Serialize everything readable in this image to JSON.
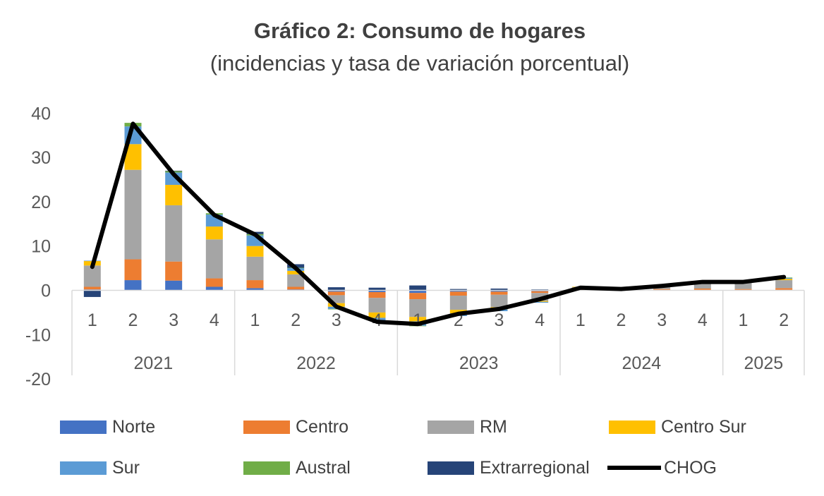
{
  "chart_data": {
    "type": "bar",
    "stacked": true,
    "title": "Gráfico 2: Consumo de hogares",
    "subtitle": "(incidencias y tasa de variación porcentual)",
    "categories": [
      "1",
      "2",
      "3",
      "4",
      "1",
      "2",
      "3",
      "4",
      "1",
      "2",
      "3",
      "4",
      "1",
      "2",
      "3",
      "4",
      "1",
      "2"
    ],
    "groups": [
      {
        "label": "2021",
        "count": 4
      },
      {
        "label": "2022",
        "count": 4
      },
      {
        "label": "2023",
        "count": 4
      },
      {
        "label": "2024",
        "count": 4
      },
      {
        "label": "2025",
        "count": 2
      }
    ],
    "ylim": [
      -20,
      40
    ],
    "yticks": [
      "-20",
      "-10",
      "0",
      "10",
      "20",
      "30",
      "40"
    ],
    "series": [
      {
        "name": "Norte",
        "color": "#4472C4",
        "values": [
          0.2,
          2.3,
          2.2,
          0.8,
          0.5,
          0.2,
          -0.3,
          -0.4,
          -0.6,
          -0.3,
          -0.3,
          -0.2,
          0.1,
          0.1,
          0.1,
          0.1,
          0.1,
          0.1
        ]
      },
      {
        "name": "Centro",
        "color": "#ED7D31",
        "values": [
          0.6,
          4.7,
          4.3,
          1.9,
          1.8,
          0.6,
          -0.8,
          -1.3,
          -1.4,
          -0.9,
          -0.7,
          -0.4,
          0.2,
          0.1,
          0.2,
          0.3,
          0.2,
          0.4
        ]
      },
      {
        "name": "RM",
        "color": "#A5A5A5",
        "values": [
          4.8,
          20.2,
          12.7,
          8.8,
          5.3,
          2.8,
          -1.8,
          -3.3,
          -4.0,
          -3.2,
          -2.8,
          -1.8,
          0.4,
          0.2,
          0.7,
          1.5,
          1.5,
          1.8
        ]
      },
      {
        "name": "Centro Sur",
        "color": "#FFC000",
        "values": [
          1.0,
          5.8,
          4.6,
          2.9,
          2.4,
          0.8,
          -0.8,
          -1.2,
          -1.0,
          -0.8,
          -0.5,
          -0.2,
          0.1,
          0.0,
          0.1,
          0.1,
          0.1,
          0.3
        ]
      },
      {
        "name": "Sur",
        "color": "#5B9BD5",
        "values": [
          0.1,
          4.0,
          2.8,
          2.7,
          2.4,
          0.6,
          -0.5,
          -0.6,
          -1.0,
          -0.6,
          -0.4,
          -0.2,
          0.0,
          0.0,
          0.0,
          0.0,
          0.0,
          0.2
        ]
      },
      {
        "name": "Austral",
        "color": "#70AD47",
        "values": [
          0.0,
          0.8,
          0.3,
          0.3,
          0.3,
          0.1,
          -0.1,
          -0.1,
          -0.1,
          0.0,
          0.0,
          0.0,
          0.0,
          0.0,
          0.0,
          0.0,
          0.0,
          0.1
        ]
      },
      {
        "name": "Extrarregional",
        "color": "#264478",
        "values": [
          -1.5,
          0.0,
          0.1,
          0.0,
          0.5,
          0.8,
          0.7,
          0.6,
          1.1,
          0.3,
          0.4,
          0.2,
          0.0,
          0.0,
          0.0,
          0.0,
          0.0,
          0.0
        ]
      }
    ],
    "line": {
      "name": "CHOG",
      "color": "#000000",
      "values": [
        5.3,
        37.6,
        26.2,
        17.0,
        12.6,
        5.0,
        -3.7,
        -7.1,
        -7.6,
        -5.3,
        -4.2,
        -2.0,
        0.6,
        0.3,
        1.0,
        1.9,
        1.9,
        3.0
      ]
    },
    "legend_position": "bottom",
    "grid": false
  }
}
